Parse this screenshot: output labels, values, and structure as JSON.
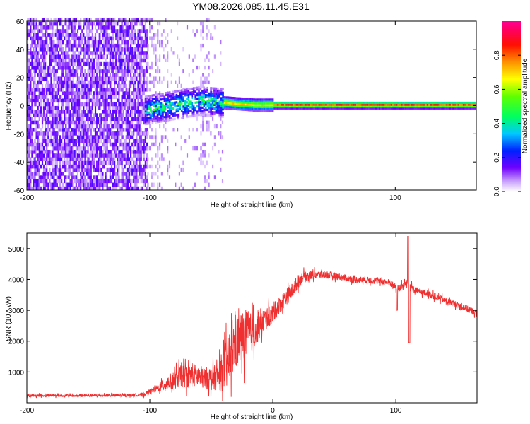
{
  "figure_title": "YM08.2026.085.11.45.E31",
  "colors": {
    "snr_line": "#f03030",
    "frame": "#000000",
    "background": "#ffffff"
  },
  "colorbar": {
    "label": "Normalized spectral amplitude",
    "ticks": [
      "0.0",
      "0.2",
      "0.4",
      "0.6",
      "0.8"
    ],
    "tick_values": [
      0.0,
      0.2,
      0.4,
      0.6,
      0.8
    ],
    "range": [
      0,
      1
    ]
  },
  "chart_data": [
    {
      "type": "heatmap",
      "title": "YM08.2026.085.11.45.E31",
      "xlabel": "Height of straight line (km)",
      "ylabel": "Frequency (Hz)",
      "xlim": [
        -200,
        166
      ],
      "ylim": [
        -60,
        60
      ],
      "x_ticks": [
        -200,
        -100,
        0,
        100
      ],
      "x_tick_labels": [
        "-200",
        "-100",
        "0",
        "100"
      ],
      "y_ticks": [
        -60,
        -40,
        -20,
        0,
        20,
        40,
        60
      ],
      "y_tick_labels": [
        "-60",
        "-40",
        "-20",
        "0",
        "20",
        "40",
        "60"
      ],
      "description_regions": [
        {
          "x_range": [
            -200,
            -103
          ],
          "freq_range": [
            -60,
            60
          ],
          "amplitude": "low-to-mid scattered noise"
        },
        {
          "x_range": [
            -103,
            -40
          ],
          "freq_range": [
            -10,
            12
          ],
          "amplitude": "mid-to-high band, widening spread"
        },
        {
          "x_range": [
            -40,
            166
          ],
          "freq_range": [
            -2,
            2
          ],
          "amplitude": "high, narrow band near 0 Hz"
        }
      ],
      "signal_center_hz": [
        [
          -100,
          -3
        ],
        [
          -80,
          0
        ],
        [
          -60,
          3
        ],
        [
          -45,
          2
        ],
        [
          -30,
          1
        ],
        [
          -15,
          0
        ],
        [
          0,
          0
        ],
        [
          100,
          0
        ],
        [
          166,
          0
        ]
      ]
    },
    {
      "type": "line",
      "xlabel": "Height of straight line (km)",
      "ylabel": "SNR (10 * v/v)",
      "xlim": [
        -200,
        166
      ],
      "ylim": [
        0,
        5500
      ],
      "x_ticks": [
        -200,
        -100,
        0,
        100
      ],
      "x_tick_labels": [
        "-200",
        "-100",
        "0",
        "100"
      ],
      "y_ticks": [
        1000,
        2000,
        3000,
        4000,
        5000
      ],
      "y_tick_labels": [
        "1000",
        "2000",
        "3000",
        "4000",
        "5000"
      ],
      "series": [
        {
          "name": "SNR",
          "x": [
            -200,
            -180,
            -160,
            -140,
            -120,
            -105,
            -95,
            -85,
            -75,
            -65,
            -55,
            -45,
            -38,
            -30,
            -22,
            -15,
            -8,
            0,
            8,
            15,
            20,
            25,
            35,
            45,
            55,
            65,
            75,
            85,
            95,
            102,
            110,
            115,
            125,
            135,
            145,
            155,
            166
          ],
          "values": [
            230,
            240,
            230,
            240,
            240,
            270,
            450,
            650,
            850,
            900,
            800,
            800,
            1200,
            2000,
            2200,
            2300,
            2650,
            2900,
            3300,
            3600,
            3900,
            4100,
            4150,
            4150,
            4080,
            4000,
            3980,
            3950,
            3900,
            3700,
            3900,
            3650,
            3550,
            3400,
            3250,
            3100,
            2900
          ],
          "noise_amplitude": [
            80,
            80,
            80,
            80,
            80,
            100,
            200,
            450,
            650,
            700,
            650,
            800,
            1500,
            1700,
            1500,
            1000,
            700,
            550,
            500,
            450,
            400,
            300,
            250,
            220,
            200,
            200,
            200,
            200,
            200,
            250,
            200,
            200,
            200,
            200,
            200,
            200,
            200
          ],
          "spikes": [
            {
              "x": 101,
              "value": 3000
            },
            {
              "x": 110,
              "value": 5400
            },
            {
              "x": 111,
              "value": 1950
            }
          ]
        }
      ]
    }
  ]
}
